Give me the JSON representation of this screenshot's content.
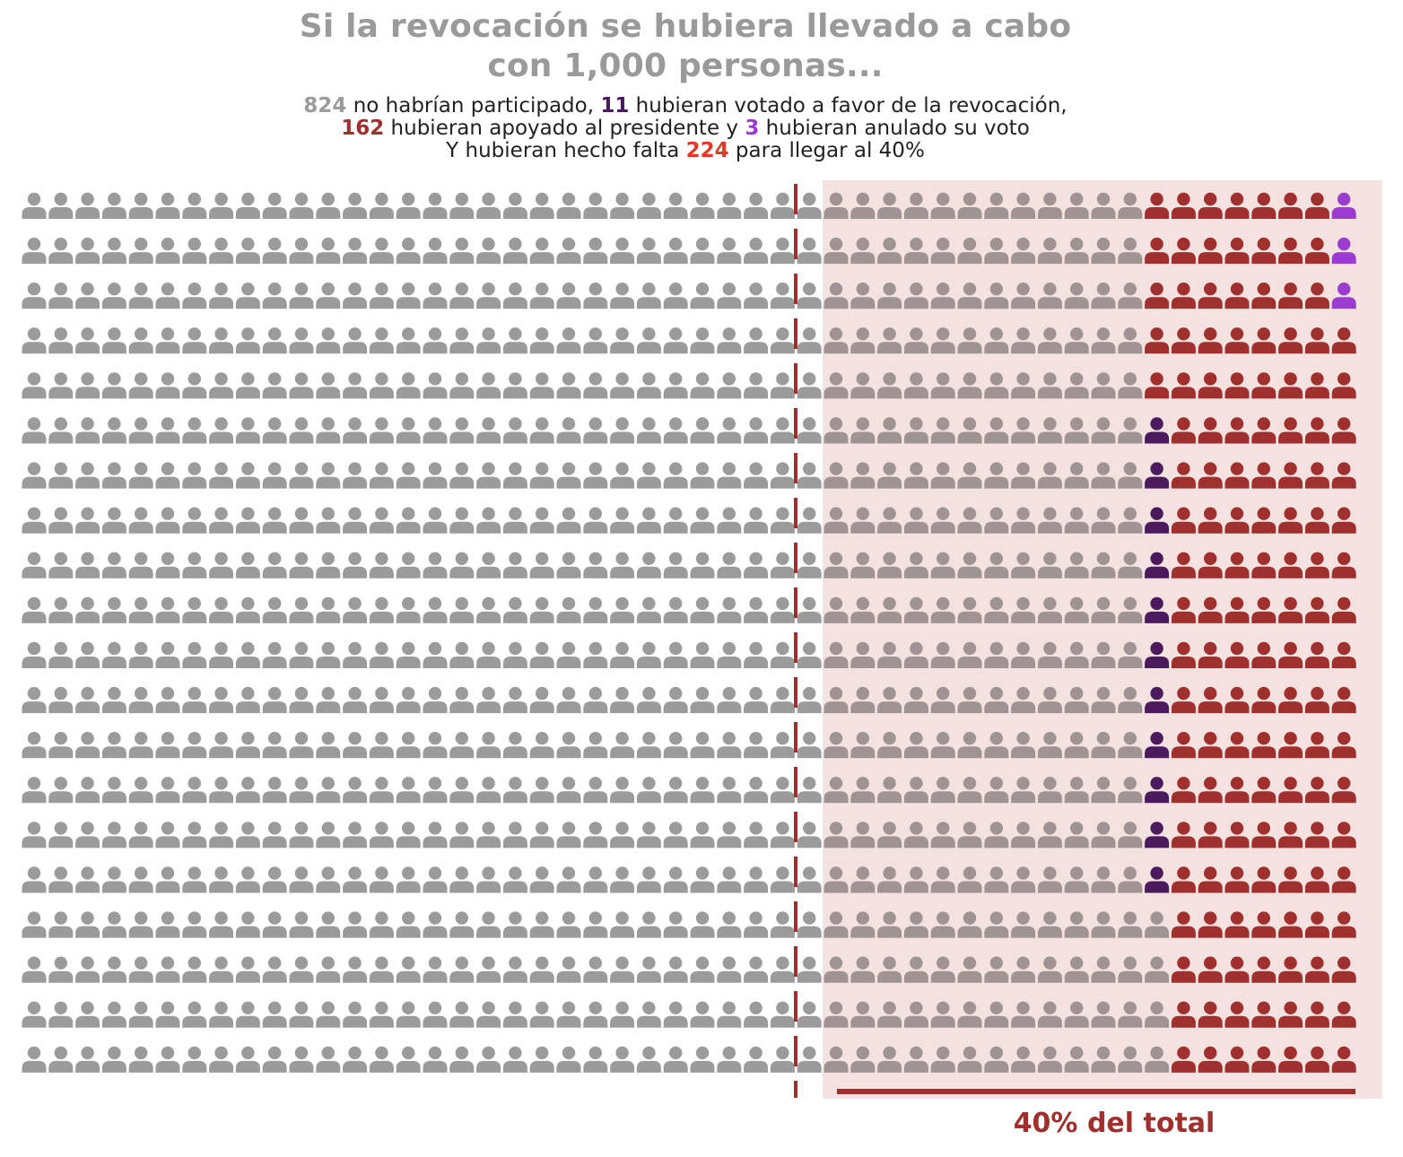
{
  "chart_data": {
    "type": "waffle",
    "title_lines": [
      "Si la revocación se hubiera llevado a cabo",
      "con 1,000 personas..."
    ],
    "subtitle_lines": [
      [
        {
          "text": "824",
          "role": "no_participation"
        },
        {
          "text": " no habrían participado, "
        },
        {
          "text": "11",
          "role": "revocation"
        },
        {
          "text": " hubieran votado a favor de la revocación,"
        }
      ],
      [
        {
          "text": "162",
          "role": "president"
        },
        {
          "text": " hubieran apoyado al presidente y "
        },
        {
          "text": "3",
          "role": "null_vote"
        },
        {
          "text": " hubieran anulado su voto"
        }
      ],
      [
        {
          "text": "Y hubieran hecho falta "
        },
        {
          "text": "224",
          "role": "missing"
        },
        {
          "text": " para llegar al 40%"
        }
      ]
    ],
    "total": 1000,
    "rows": 20,
    "columns": 50,
    "categories": [
      {
        "key": "no_participation",
        "count": 824
      },
      {
        "key": "revocation",
        "count": 11
      },
      {
        "key": "president",
        "count": 162
      },
      {
        "key": "null_vote",
        "count": 3
      }
    ],
    "threshold": {
      "percent": 40,
      "people": 400,
      "missing_to_threshold": 224,
      "label": "40% del total"
    }
  },
  "colors": {
    "no_participation": "#9b9b9b",
    "no_participation_in_band": "#a09393",
    "revocation": "#4a1a5c",
    "president": "#a0302e",
    "null_vote": "#9b3bd0",
    "missing": "#e03a24",
    "threshold_band": "#f3e2e0",
    "threshold_line": "#a0302e",
    "title": "#9a9a9a",
    "text": "#222222"
  }
}
